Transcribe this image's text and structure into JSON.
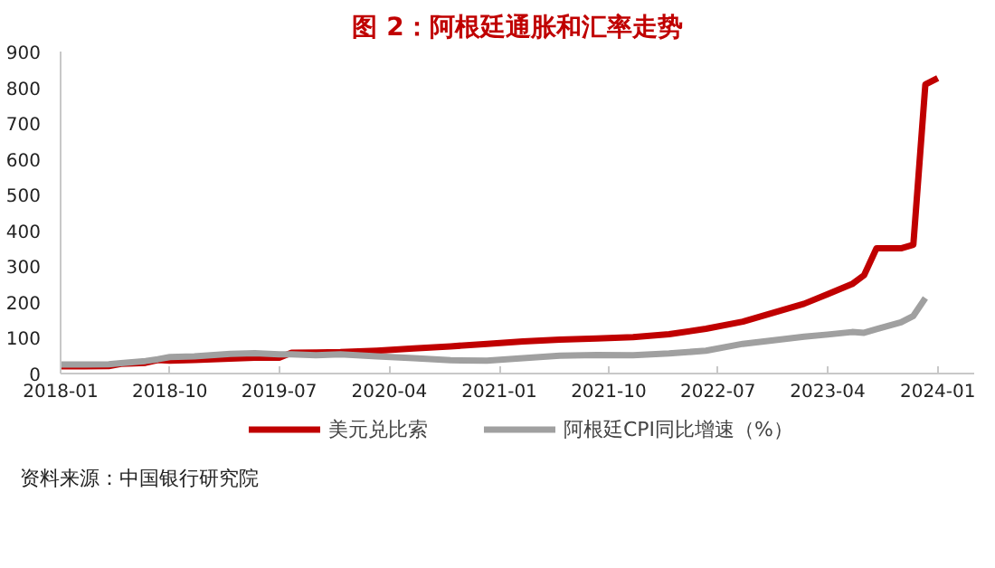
{
  "chart_data": {
    "type": "line",
    "title": "图 2：阿根廷通胀和汇率走势",
    "x": [
      "2018-01",
      "2018-03",
      "2018-05",
      "2018-06",
      "2018-08",
      "2018-09",
      "2018-10",
      "2018-12",
      "2019-03",
      "2019-05",
      "2019-07",
      "2019-08",
      "2019-10",
      "2019-12",
      "2020-03",
      "2020-06",
      "2020-09",
      "2020-12",
      "2021-03",
      "2021-06",
      "2021-09",
      "2021-12",
      "2022-03",
      "2022-06",
      "2022-09",
      "2022-12",
      "2023-02",
      "2023-04",
      "2023-06",
      "2023-07",
      "2023-08",
      "2023-10",
      "2023-11",
      "2023-12",
      "2024-01"
    ],
    "series": [
      {
        "name": "美元兑比索",
        "color": "#c00000",
        "values": [
          20,
          20,
          21,
          27,
          30,
          38,
          36,
          38,
          42,
          44,
          44,
          58,
          59,
          60,
          64,
          70,
          76,
          83,
          90,
          95,
          98,
          102,
          110,
          125,
          145,
          175,
          195,
          222,
          250,
          275,
          350,
          350,
          360,
          808,
          826
        ]
      },
      {
        "name": "阿根廷CPI同比增速（%）",
        "color": "#a0a0a0",
        "values": [
          25,
          25,
          26,
          29,
          35,
          40,
          46,
          48,
          55,
          57,
          54,
          54,
          51,
          54,
          48,
          43,
          37,
          36,
          43,
          50,
          52,
          51,
          56,
          64,
          83,
          95,
          103,
          109,
          116,
          114,
          124,
          143,
          161,
          211,
          null
        ]
      }
    ],
    "xlim": [
      "2018-01",
      "2024-04"
    ],
    "xticks": [
      "2018-01",
      "2018-10",
      "2019-07",
      "2020-04",
      "2021-01",
      "2021-10",
      "2022-07",
      "2023-04",
      "2024-01"
    ],
    "ylim": [
      0,
      900
    ],
    "yticks": [
      0,
      100,
      200,
      300,
      400,
      500,
      600,
      700,
      800,
      900
    ],
    "grid": false,
    "legend": "bottom",
    "line_style": "solid",
    "marker": "none",
    "annotations": [
      "资料来源：中国银行研究院"
    ]
  }
}
